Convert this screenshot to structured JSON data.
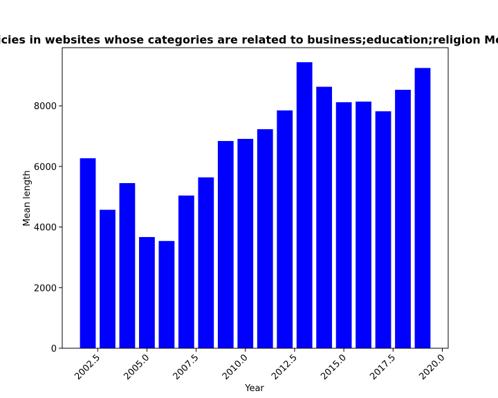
{
  "chart_data": {
    "type": "bar",
    "title": "Mean length of privacy policies in websites whose categories are related to business;education;religion Mean length in privacy policies",
    "xlabel": "Year",
    "ylabel": "Mean length",
    "x": [
      2002,
      2003,
      2004,
      2005,
      2006,
      2007,
      2008,
      2009,
      2010,
      2011,
      2012,
      2013,
      2014,
      2015,
      2016,
      2017,
      2018,
      2019
    ],
    "values": [
      6270,
      4570,
      5450,
      3670,
      3540,
      5040,
      5640,
      6840,
      6910,
      7230,
      7850,
      9440,
      8630,
      8120,
      8140,
      7820,
      8530,
      9250
    ],
    "xlim": [
      2000.7,
      2020.3
    ],
    "ylim": [
      0,
      9920
    ],
    "xticks": [
      2002.5,
      2005.0,
      2007.5,
      2010.0,
      2012.5,
      2015.0,
      2017.5,
      2020.0
    ],
    "xtick_labels": [
      "2002.5",
      "2005.0",
      "2007.5",
      "2010.0",
      "2012.5",
      "2015.0",
      "2017.5",
      "2020.0"
    ],
    "yticks": [
      0,
      2000,
      4000,
      6000,
      8000
    ],
    "ytick_labels": [
      "0",
      "2000",
      "4000",
      "6000",
      "8000"
    ],
    "bar_color": "#0000ff",
    "grid": false,
    "legend": "none"
  }
}
